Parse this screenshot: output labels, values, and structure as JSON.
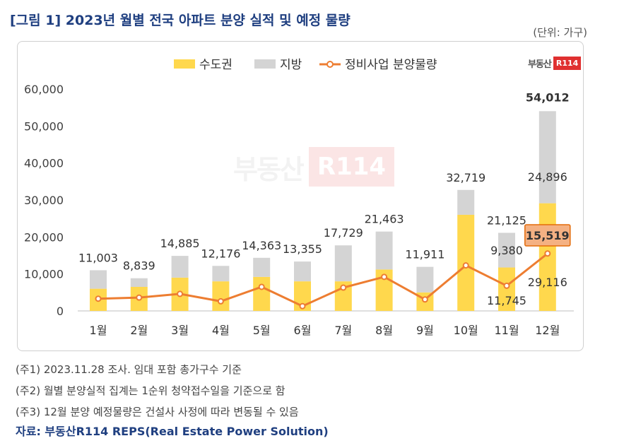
{
  "header": {
    "title": "[그림 1] 2023년 월별 전국 아파트 분양 실적 및 예정 물량",
    "unit": "(단위: 가구)"
  },
  "logo": {
    "text": "부동산",
    "box": "R114"
  },
  "notes": [
    "(주1) 2023.11.28 조사. 임대 포함 총가구수 기준",
    "(주2) 월별 분양실적 집계는 1순위 청약접수일을 기준으로 함",
    "(주3) 12월 분양 예정물량은 건설사 사정에 따라 변동될 수 있음"
  ],
  "source": "자료: 부동산R114 REPS(Real Estate Power Solution)",
  "colors": {
    "capital": "#ffd84d",
    "local": "#d4d4d4",
    "line": "#ed7d31",
    "highlight": "#f4b183"
  },
  "chart_data": {
    "type": "bar",
    "stacked": true,
    "categories": [
      "1월",
      "2월",
      "3월",
      "4월",
      "5월",
      "6월",
      "7월",
      "8월",
      "9월",
      "10월",
      "11월",
      "12월"
    ],
    "series": [
      {
        "name": "수도권",
        "values": [
          6000,
          6500,
          9000,
          8000,
          9200,
          8000,
          8000,
          11200,
          5000,
          26000,
          11745,
          29116
        ]
      },
      {
        "name": "지방",
        "values": [
          5003,
          2339,
          5885,
          4176,
          5163,
          5355,
          9729,
          10263,
          6911,
          6719,
          9380,
          24896
        ]
      }
    ],
    "totals": [
      11003,
      8839,
      14885,
      12176,
      14363,
      13355,
      17729,
      21463,
      11911,
      32719,
      21125,
      54012
    ],
    "line": {
      "name": "정비사업 분양물량",
      "values": [
        3300,
        3600,
        4600,
        2600,
        6500,
        1300,
        6300,
        9200,
        3100,
        12300,
        6800,
        15519
      ]
    },
    "total_labels": [
      "11,003",
      "8,839",
      "14,885",
      "12,176",
      "14,363",
      "13,355",
      "17,729",
      "21,463",
      "11,911",
      "32,719",
      "21,125",
      "54,012"
    ],
    "segment_labels": [
      {
        "category": "11월",
        "series": "지방",
        "text": "9,380"
      },
      {
        "category": "11월",
        "series": "수도권",
        "text": "11,745"
      },
      {
        "category": "12월",
        "series": "지방",
        "text": "24,896"
      },
      {
        "category": "12월",
        "series": "수도권",
        "text": "29,116"
      }
    ],
    "highlight_label": {
      "category": "12월",
      "text": "15,519"
    },
    "y_ticks": [
      "0",
      "10,000",
      "20,000",
      "30,000",
      "40,000",
      "50,000",
      "60,000"
    ],
    "ylim": [
      0,
      60000
    ],
    "legend_position": "top"
  }
}
